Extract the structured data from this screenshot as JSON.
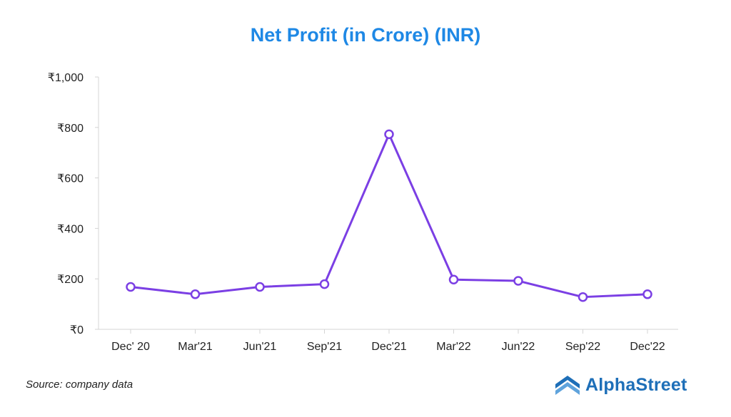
{
  "chart_data": {
    "type": "line",
    "title": "Net Profit (in Crore) (INR)",
    "xlabel": "",
    "ylabel": "",
    "categories": [
      "Dec' 20",
      "Mar'21",
      "Jun'21",
      "Sep'21",
      "Dec'21",
      "Mar'22",
      "Jun'22",
      "Sep'22",
      "Dec'22"
    ],
    "series": [
      {
        "values": [
          168,
          139,
          168,
          179,
          773,
          197,
          192,
          128,
          139
        ],
        "color": "#7b3fe4"
      }
    ],
    "ylim": [
      0,
      1000
    ],
    "yticks": [
      0,
      200,
      400,
      600,
      800,
      1000
    ],
    "ytick_labels": [
      "₹0",
      "₹200",
      "₹400",
      "₹600",
      "₹800",
      "₹1,000"
    ],
    "grid": false,
    "legend": "none"
  },
  "footer": {
    "source": "Source: company data"
  },
  "brand": {
    "name": "AlphaStreet",
    "logo_icon": "alphastreet-chevron-logo-icon",
    "color": "#1e6fb8"
  }
}
